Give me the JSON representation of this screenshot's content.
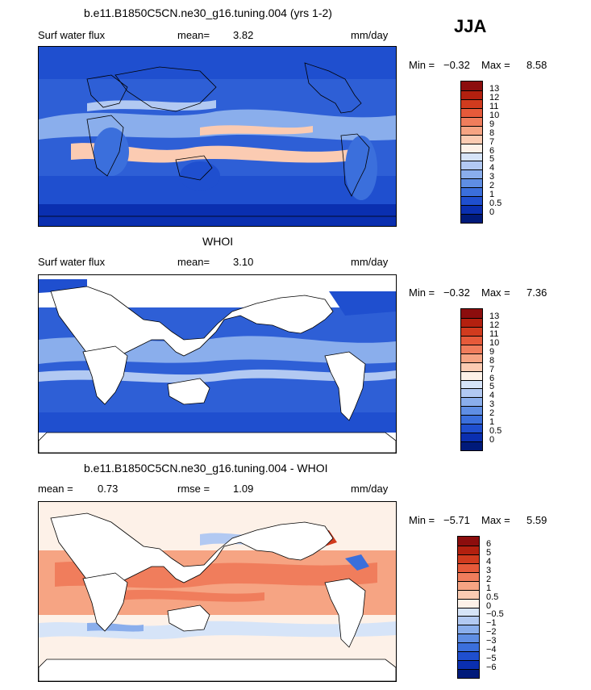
{
  "season": "JJA",
  "panels": [
    {
      "title": "b.e11.B1850C5CN.ne30_g16.tuning.004 (yrs 1-2)",
      "variable": "Surf water flux",
      "stat1_label": "mean=",
      "stat1_value": "3.82",
      "stat2_label": "",
      "stat2_value": "",
      "units": "mm/day",
      "min_label": "Min =",
      "min_value": "−0.32",
      "max_label": "Max =",
      "max_value": "8.58",
      "colorbar": {
        "levels": [
          "13",
          "12",
          "11",
          "10",
          "9",
          "8",
          "7",
          "6",
          "5",
          "4",
          "3",
          "2",
          "1",
          "0.5",
          "0"
        ],
        "colors": [
          "#8c0d0d",
          "#b3200f",
          "#d13b1e",
          "#e65a3a",
          "#f07d5c",
          "#f6a483",
          "#fbcbb2",
          "#fdf1e8",
          "#d6e4f8",
          "#b2c9f2",
          "#8aaeec",
          "#5f8ee4",
          "#3b6fdc",
          "#1f4fcf",
          "#0a2fb0",
          "#001a7a"
        ]
      },
      "map_fill": "ocean_and_land"
    },
    {
      "title": "WHOI",
      "variable": "Surf water flux",
      "stat1_label": "mean=",
      "stat1_value": "3.10",
      "stat2_label": "",
      "stat2_value": "",
      "units": "mm/day",
      "min_label": "Min =",
      "min_value": "−0.32",
      "max_label": "Max =",
      "max_value": "7.36",
      "colorbar": {
        "levels": [
          "13",
          "12",
          "11",
          "10",
          "9",
          "8",
          "7",
          "6",
          "5",
          "4",
          "3",
          "2",
          "1",
          "0.5",
          "0"
        ],
        "colors": [
          "#8c0d0d",
          "#b3200f",
          "#d13b1e",
          "#e65a3a",
          "#f07d5c",
          "#f6a483",
          "#fbcbb2",
          "#fdf1e8",
          "#d6e4f8",
          "#b2c9f2",
          "#8aaeec",
          "#5f8ee4",
          "#3b6fdc",
          "#1f4fcf",
          "#0a2fb0",
          "#001a7a"
        ]
      },
      "map_fill": "ocean_only"
    },
    {
      "title": "b.e11.B1850C5CN.ne30_g16.tuning.004 - WHOI",
      "variable": "",
      "stat1_label": "mean =",
      "stat1_value": "0.73",
      "stat2_label": "rmse =",
      "stat2_value": "1.09",
      "units": "mm/day",
      "min_label": "Min =",
      "min_value": "−5.71",
      "max_label": "Max =",
      "max_value": "5.59",
      "colorbar": {
        "levels": [
          "6",
          "5",
          "4",
          "3",
          "2",
          "1",
          "0.5",
          "0",
          "−0.5",
          "−1",
          "−2",
          "−3",
          "−4",
          "−5",
          "−6"
        ],
        "colors": [
          "#8c0d0d",
          "#b3200f",
          "#d13b1e",
          "#e65a3a",
          "#f07d5c",
          "#f6a483",
          "#fbcbb2",
          "#fdf1e8",
          "#d6e4f8",
          "#b2c9f2",
          "#8aaeec",
          "#5f8ee4",
          "#3b6fdc",
          "#1f4fcf",
          "#0a2fb0",
          "#001a7a"
        ]
      },
      "map_fill": "difference"
    }
  ],
  "chart_data": [
    {
      "type": "heatmap",
      "title": "b.e11.B1850C5CN.ne30_g16.tuning.004 (yrs 1-2)",
      "variable": "Surf water flux",
      "units": "mm/day",
      "mean": 3.82,
      "min": -0.32,
      "max": 8.58,
      "contour_levels": [
        0,
        0.5,
        1,
        2,
        3,
        4,
        5,
        6,
        7,
        8,
        9,
        10,
        11,
        12,
        13
      ]
    },
    {
      "type": "heatmap",
      "title": "WHOI",
      "variable": "Surf water flux",
      "units": "mm/day",
      "mean": 3.1,
      "min": -0.32,
      "max": 7.36,
      "contour_levels": [
        0,
        0.5,
        1,
        2,
        3,
        4,
        5,
        6,
        7,
        8,
        9,
        10,
        11,
        12,
        13
      ]
    },
    {
      "type": "heatmap",
      "title": "b.e11.B1850C5CN.ne30_g16.tuning.004 - WHOI",
      "units": "mm/day",
      "mean": 0.73,
      "rmse": 1.09,
      "min": -5.71,
      "max": 5.59,
      "contour_levels": [
        -6,
        -5,
        -4,
        -3,
        -2,
        -1,
        -0.5,
        0,
        0.5,
        1,
        2,
        3,
        4,
        5,
        6
      ]
    }
  ]
}
